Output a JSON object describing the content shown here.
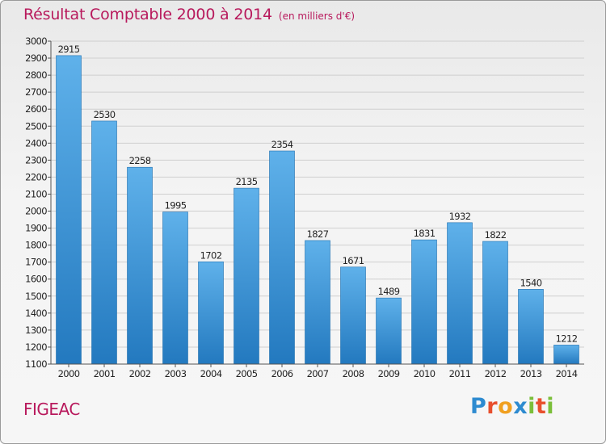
{
  "header": {
    "title": "Résultat Comptable 2000 à 2014",
    "subtitle": "(en milliers d'€)"
  },
  "footer": {
    "city": "FIGEAC",
    "brand_letters": [
      "P",
      "r",
      "o",
      "x",
      "i",
      "t",
      "i"
    ],
    "brand_colors": [
      "#2e8bd0",
      "#e84f2d",
      "#f0a020",
      "#2e8bd0",
      "#7bbf3a",
      "#e84f2d",
      "#7bbf3a"
    ]
  },
  "colors": {
    "title": "#b8195c",
    "bar_top": "#5fb1ea",
    "bar_bottom": "#2379bf",
    "grid": "#cfcfcf",
    "axis_text": "#222222"
  },
  "chart_data": {
    "type": "bar",
    "categories": [
      "2000",
      "2001",
      "2002",
      "2003",
      "2004",
      "2005",
      "2006",
      "2007",
      "2008",
      "2009",
      "2010",
      "2011",
      "2012",
      "2013",
      "2014"
    ],
    "values": [
      2915,
      2530,
      2258,
      1995,
      1702,
      2135,
      2354,
      1827,
      1671,
      1489,
      1831,
      1932,
      1822,
      1540,
      1212
    ],
    "title": "Résultat Comptable 2000 à 2014",
    "subtitle": "(en milliers d'€)",
    "xlabel": "",
    "ylabel": "",
    "ylim": [
      1100,
      3000
    ],
    "yticks": [
      1100,
      1200,
      1300,
      1400,
      1500,
      1600,
      1700,
      1800,
      1900,
      2000,
      2100,
      2200,
      2300,
      2400,
      2500,
      2600,
      2700,
      2800,
      2900,
      3000
    ],
    "grid": true,
    "legend": "none"
  }
}
